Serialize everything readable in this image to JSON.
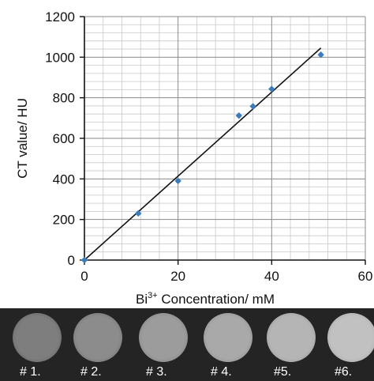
{
  "chart_data": {
    "type": "scatter",
    "title": "",
    "xlabel": {
      "prefix": "Bi",
      "sup": "3+",
      "suffix": " Concentration/  mM"
    },
    "ylabel": "CT value/ HU",
    "xlim": [
      0,
      60
    ],
    "ylim": [
      0,
      1200
    ],
    "x_ticks": [
      "0",
      "20",
      "40",
      "60"
    ],
    "y_ticks": [
      "0",
      "200",
      "400",
      "600",
      "800",
      "1000",
      "1200"
    ],
    "grid": true,
    "legend": "none",
    "series": [
      {
        "points": [
          {
            "x": 0,
            "y": 0
          },
          {
            "x": 11.5,
            "y": 230
          },
          {
            "x": 20,
            "y": 390
          },
          {
            "x": 33,
            "y": 712
          },
          {
            "x": 36,
            "y": 758
          },
          {
            "x": 40,
            "y": 843
          },
          {
            "x": 50.5,
            "y": 1012
          }
        ],
        "color": "#3a7dbf"
      }
    ],
    "trendline": {
      "from": {
        "x": 0,
        "y": 0
      },
      "to": {
        "x": 50.5,
        "y": 1045
      },
      "color": "#111111"
    }
  },
  "samples": [
    {
      "label": "# 1.",
      "brightness": 0.3
    },
    {
      "label": "# 2.",
      "brightness": 0.42
    },
    {
      "label": "# 3.",
      "brightness": 0.55
    },
    {
      "label": "# 4.",
      "brightness": 0.66
    },
    {
      "label": "#5.",
      "brightness": 0.76
    },
    {
      "label": "#6.",
      "brightness": 0.86
    }
  ]
}
